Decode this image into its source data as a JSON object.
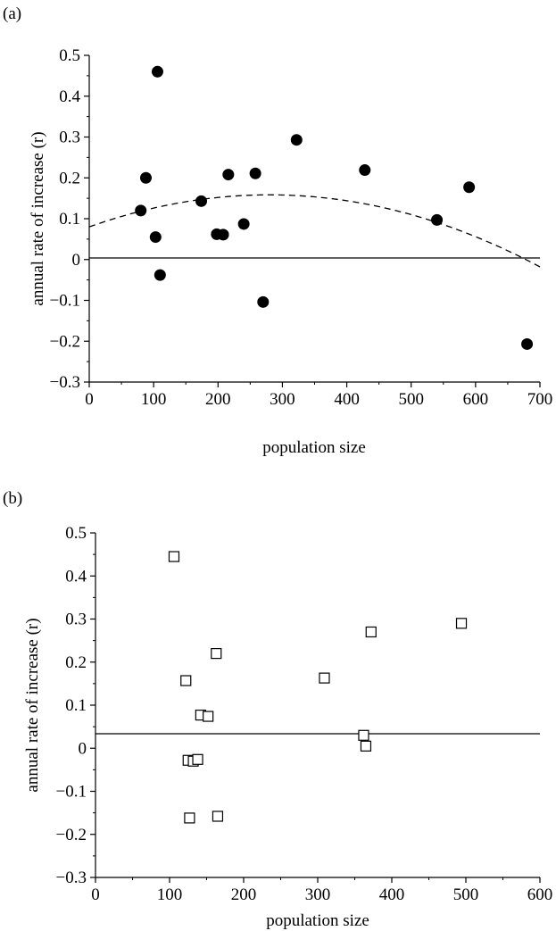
{
  "chart_data": [
    {
      "type": "scatter",
      "panel_label": "(a)",
      "xlabel": "population size",
      "ylabel": "annual rate of increase (r)",
      "xlim": [
        0,
        700
      ],
      "ylim": [
        -0.3,
        0.5
      ],
      "xticks": [
        0,
        100,
        200,
        300,
        400,
        500,
        600,
        700
      ],
      "yticks": [
        -0.3,
        -0.2,
        -0.1,
        0,
        0.1,
        0.2,
        0.3,
        0.4,
        0.5
      ],
      "xtick_labels": [
        "0",
        "100",
        "200",
        "300",
        "400",
        "500",
        "600",
        "700"
      ],
      "ytick_labels": [
        "−0.3",
        "−0.2",
        "−0.1",
        "0",
        "0.1",
        "0.2",
        "0.3",
        "0.4",
        "0.5"
      ],
      "marker": "filled-circle",
      "zero_line": true,
      "points": [
        {
          "x": 80,
          "y": 0.12
        },
        {
          "x": 88,
          "y": 0.2
        },
        {
          "x": 103,
          "y": 0.055
        },
        {
          "x": 106,
          "y": 0.46
        },
        {
          "x": 110,
          "y": -0.038
        },
        {
          "x": 174,
          "y": 0.143
        },
        {
          "x": 198,
          "y": 0.062
        },
        {
          "x": 208,
          "y": 0.061
        },
        {
          "x": 216,
          "y": 0.208
        },
        {
          "x": 240,
          "y": 0.087
        },
        {
          "x": 258,
          "y": 0.211
        },
        {
          "x": 270,
          "y": -0.104
        },
        {
          "x": 322,
          "y": 0.293
        },
        {
          "x": 428,
          "y": 0.219
        },
        {
          "x": 540,
          "y": 0.097
        },
        {
          "x": 590,
          "y": 0.177
        },
        {
          "x": 680,
          "y": -0.207
        }
      ],
      "fit_curve": {
        "style": "dashed",
        "kind": "quadratic",
        "x_range": [
          0,
          700
        ],
        "coefficients": {
          "a": 0.08,
          "b": 0.00056,
          "c": -1e-06
        }
      }
    },
    {
      "type": "scatter",
      "panel_label": "(b)",
      "xlabel": "population size",
      "ylabel": "annual rate of increase (r)",
      "xlim": [
        0,
        600
      ],
      "ylim": [
        -0.3,
        0.5
      ],
      "xticks": [
        0,
        100,
        200,
        300,
        400,
        500,
        600
      ],
      "yticks": [
        -0.3,
        -0.2,
        -0.1,
        0,
        0.1,
        0.2,
        0.3,
        0.4,
        0.5
      ],
      "xtick_labels": [
        "0",
        "100",
        "200",
        "300",
        "400",
        "500",
        "600"
      ],
      "ytick_labels": [
        "−0.3",
        "−0.2",
        "−0.1",
        "0",
        "0.1",
        "0.2",
        "0.3",
        "0.4",
        "0.5"
      ],
      "marker": "open-square",
      "zero_line": true,
      "points": [
        {
          "x": 106,
          "y": 0.445
        },
        {
          "x": 122,
          "y": 0.157
        },
        {
          "x": 125,
          "y": -0.028
        },
        {
          "x": 127,
          "y": -0.162
        },
        {
          "x": 132,
          "y": -0.03
        },
        {
          "x": 138,
          "y": -0.026
        },
        {
          "x": 142,
          "y": 0.077
        },
        {
          "x": 152,
          "y": 0.074
        },
        {
          "x": 163,
          "y": 0.22
        },
        {
          "x": 165,
          "y": -0.158
        },
        {
          "x": 309,
          "y": 0.163
        },
        {
          "x": 362,
          "y": 0.03
        },
        {
          "x": 365,
          "y": 0.005
        },
        {
          "x": 372,
          "y": 0.27
        },
        {
          "x": 494,
          "y": 0.29
        }
      ]
    }
  ]
}
